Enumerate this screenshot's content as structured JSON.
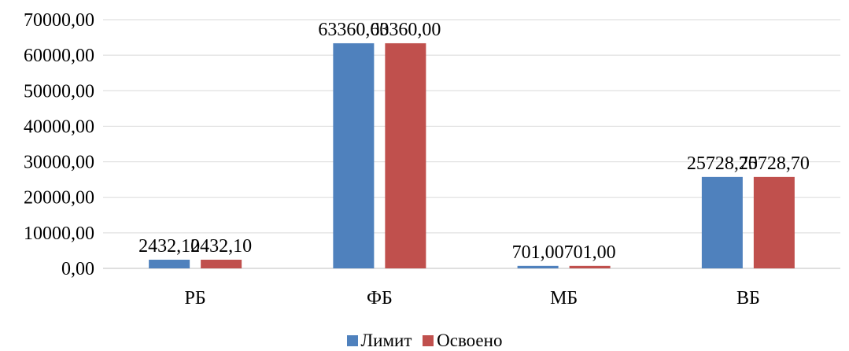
{
  "chart_data": {
    "type": "bar",
    "categories": [
      "РБ",
      "ФБ",
      "МБ",
      "ВБ"
    ],
    "series": [
      {
        "name": "Лимит",
        "values": [
          2432.1,
          63360.0,
          701.0,
          25728.7
        ],
        "labels": [
          "2432,10",
          "63360,00",
          "701,00",
          "25728,70"
        ],
        "color": "#4F81BD"
      },
      {
        "name": "Освоено",
        "values": [
          2432.1,
          63360.0,
          701.0,
          25728.7
        ],
        "labels": [
          "2432,10",
          "63360,00",
          "701,00",
          "25728,70"
        ],
        "color": "#C0504D"
      }
    ],
    "ylim": [
      0,
      70000
    ],
    "yticks": [
      "0,00",
      "10000,00",
      "20000,00",
      "30000,00",
      "40000,00",
      "50000,00",
      "60000,00",
      "70000,00"
    ],
    "grid": true,
    "legend_position": "bottom"
  }
}
